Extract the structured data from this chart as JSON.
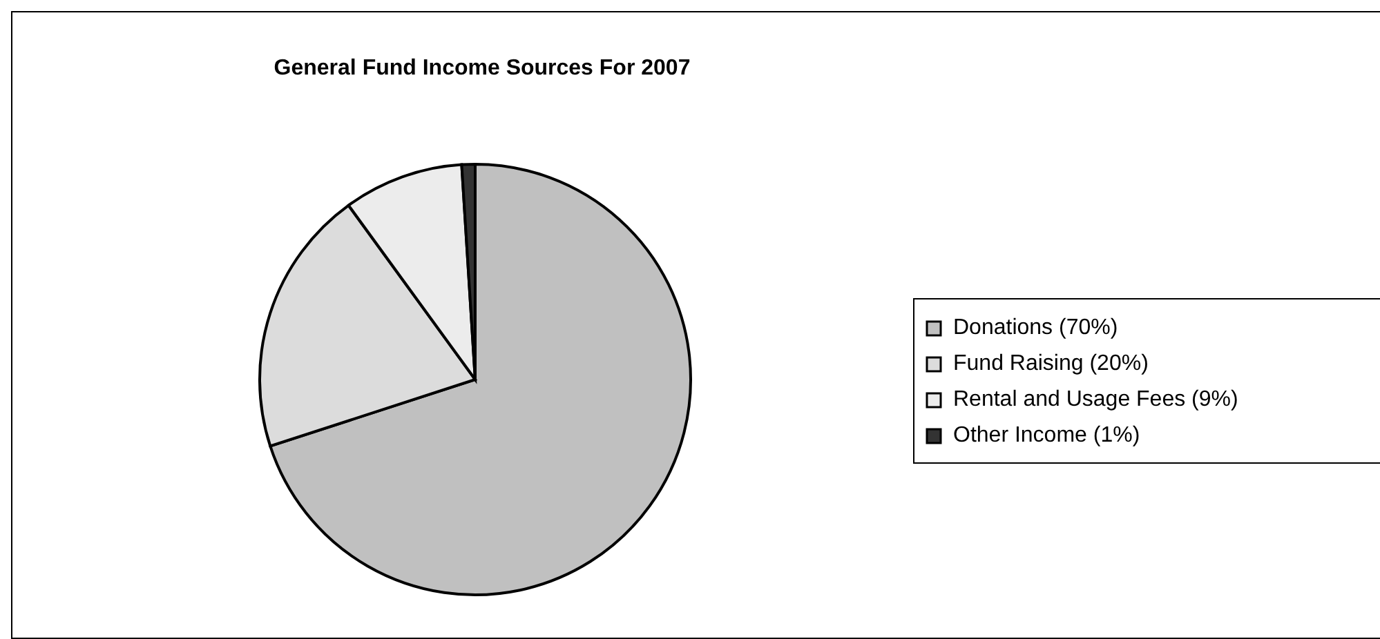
{
  "chart_data": {
    "type": "pie",
    "title": "General Fund Income Sources For 2007",
    "categories": [
      "Donations (70%)",
      "Fund Raising (20%)",
      "Rental and Usage Fees (9%)",
      "Other Income (1%)"
    ],
    "values": [
      70,
      20,
      9,
      1
    ],
    "colors": [
      "#c0c0c0",
      "#dcdcdc",
      "#ececec",
      "#333333"
    ],
    "legend": "right"
  }
}
